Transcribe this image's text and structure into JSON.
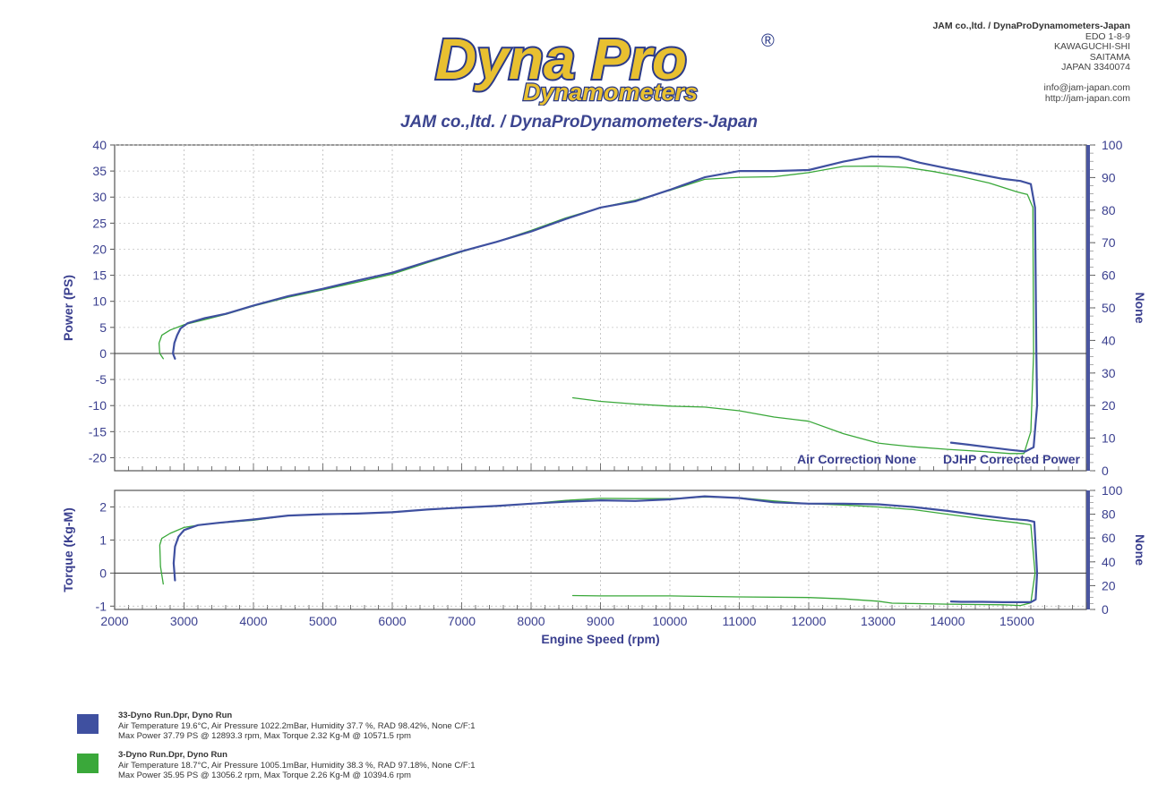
{
  "header": {
    "logo_text": "Dyna Pro",
    "logo_sub": "Dynamometers",
    "logo_mark": "®",
    "company_lines": [
      "JAM co.,ltd. / DynaProDynamometers-Japan",
      "EDO 1-8-9",
      "KAWAGUCHI-SHI",
      "SAITAMA",
      "JAPAN 3340074"
    ],
    "contact_lines": [
      "info@jam-japan.com",
      "http://jam-japan.com"
    ]
  },
  "report_title": "JAM co.,ltd. / DynaProDynamometers-Japan",
  "colors": {
    "run33": "#3f50a0",
    "run3": "#3aa83a",
    "axis_text": "#3a3f8f"
  },
  "chart_data": [
    {
      "type": "line",
      "ylabel": "Power (PS)",
      "y2label": "None",
      "ylim": [
        -22.5,
        40
      ],
      "y_ticks": [
        "40",
        "35",
        "30",
        "25",
        "20",
        "15",
        "10",
        "5",
        "0",
        "-5",
        "-10",
        "-15",
        "-20"
      ],
      "y2lim": [
        0,
        100
      ],
      "y2_ticks": [
        "100",
        "90",
        "80",
        "70",
        "60",
        "50",
        "40",
        "30",
        "20",
        "10",
        "0"
      ],
      "xlim": [
        2000,
        16000
      ],
      "grid": true,
      "annotations": [
        "Air Correction None",
        "DJHP Corrected Power"
      ],
      "series": [
        {
          "name": "33-Dyno Run.Dpr",
          "color": "#3f50a0",
          "x": [
            2870,
            2840,
            2860,
            2900,
            2950,
            3050,
            3300,
            3600,
            4000,
            4500,
            5000,
            5500,
            6000,
            6500,
            7000,
            7500,
            8000,
            8500,
            9000,
            9500,
            10000,
            10500,
            11000,
            11500,
            12000,
            12500,
            12900,
            13300,
            13600,
            14000,
            14400,
            14800,
            15050,
            15200,
            15260,
            15280,
            15290,
            15240,
            15120,
            14900,
            14600,
            14300,
            14050
          ],
          "y": [
            -1,
            0,
            2,
            3.5,
            4.8,
            5.8,
            6.8,
            7.6,
            9.2,
            11,
            12.4,
            14,
            15.5,
            17.6,
            19.6,
            21.4,
            23.4,
            25.8,
            28,
            29.2,
            31.4,
            33.8,
            35,
            35,
            35.2,
            36.8,
            37.8,
            37.7,
            36.6,
            35.5,
            34.5,
            33.5,
            33.1,
            32.5,
            28,
            0,
            -10,
            -18,
            -18.8,
            -18.5,
            -18,
            -17.5,
            -17.1
          ]
        },
        {
          "name": "3-Dyno Run.Dpr",
          "color": "#3aa83a",
          "x": [
            2700,
            2650,
            2640,
            2680,
            2800,
            3000,
            3300,
            3600,
            4000,
            4500,
            5000,
            5500,
            6000,
            6500,
            7000,
            7500,
            8000,
            8500,
            9000,
            9500,
            10000,
            10500,
            11000,
            11500,
            12000,
            12500,
            13000,
            13400,
            13800,
            14200,
            14600,
            15000,
            15150,
            15230,
            15240,
            15200,
            15100,
            14900,
            14500,
            14000,
            13500,
            13200,
            13000,
            12500,
            12000,
            11500,
            11000,
            10500,
            10000,
            9500,
            9000,
            8600
          ],
          "y": [
            -1,
            0,
            2,
            3.5,
            4.5,
            5.5,
            6.5,
            7.5,
            9.1,
            10.8,
            12.2,
            13.7,
            15.2,
            17.4,
            19.5,
            21.4,
            23.6,
            26,
            28,
            29.4,
            31.3,
            33.4,
            33.8,
            33.9,
            34.7,
            35.9,
            35.95,
            35.7,
            34.9,
            33.9,
            32.7,
            31,
            30.5,
            28,
            0,
            -15,
            -19.2,
            -19.2,
            -18.8,
            -18.4,
            -17.9,
            -17.5,
            -17.2,
            -15.4,
            -13,
            -12.2,
            -11,
            -10.3,
            -10.1,
            -9.7,
            -9.2,
            -8.5
          ]
        }
      ]
    },
    {
      "type": "line",
      "ylabel": "Torque (Kg-M)",
      "xlabel": "Engine Speed (rpm)",
      "y2label": "None",
      "ylim": [
        -1.1,
        2.5
      ],
      "y_ticks": [
        "2",
        "1",
        "0",
        "-1"
      ],
      "y2lim": [
        0,
        100
      ],
      "y2_ticks": [
        "100",
        "80",
        "60",
        "40",
        "20",
        "0"
      ],
      "xlim": [
        2000,
        16000
      ],
      "x_ticks": [
        "2000",
        "3000",
        "4000",
        "5000",
        "6000",
        "7000",
        "8000",
        "9000",
        "10000",
        "11000",
        "12000",
        "13000",
        "14000",
        "15000"
      ],
      "grid": true,
      "series": [
        {
          "name": "33-Dyno Run.Dpr",
          "color": "#3f50a0",
          "x": [
            2870,
            2850,
            2870,
            2920,
            3000,
            3200,
            3500,
            4000,
            4500,
            5000,
            5500,
            6000,
            6500,
            7000,
            7500,
            8000,
            8500,
            9000,
            9500,
            10000,
            10500,
            11000,
            11500,
            12000,
            12500,
            13000,
            13500,
            14000,
            14500,
            14900,
            15150,
            15250,
            15290,
            15270,
            15200,
            15050,
            14800,
            14500,
            14200,
            14050
          ],
          "y": [
            -0.22,
            0.3,
            0.8,
            1.1,
            1.3,
            1.45,
            1.52,
            1.62,
            1.74,
            1.78,
            1.8,
            1.84,
            1.92,
            1.98,
            2.03,
            2.1,
            2.16,
            2.2,
            2.18,
            2.23,
            2.32,
            2.27,
            2.14,
            2.1,
            2.1,
            2.08,
            2.0,
            1.88,
            1.74,
            1.64,
            1.6,
            1.55,
            0,
            -0.8,
            -0.88,
            -0.88,
            -0.88,
            -0.87,
            -0.87,
            -0.86
          ]
        },
        {
          "name": "3-Dyno Run.Dpr",
          "color": "#3aa83a",
          "x": [
            2700,
            2660,
            2650,
            2680,
            2800,
            3000,
            3300,
            3600,
            4000,
            4500,
            5000,
            5500,
            6000,
            6500,
            7000,
            7500,
            8000,
            8500,
            9000,
            9500,
            10000,
            10500,
            11000,
            11500,
            12000,
            12500,
            13000,
            13500,
            14000,
            14500,
            15000,
            15200,
            15260,
            15200,
            15050,
            14800,
            14400,
            14000,
            13500,
            13200,
            13000,
            12500,
            12000,
            11000,
            10000,
            9000,
            8600
          ],
          "y": [
            -0.33,
            0.2,
            0.85,
            1.05,
            1.2,
            1.38,
            1.48,
            1.53,
            1.6,
            1.74,
            1.78,
            1.8,
            1.85,
            1.92,
            1.97,
            2.02,
            2.1,
            2.2,
            2.26,
            2.25,
            2.25,
            2.3,
            2.28,
            2.18,
            2.1,
            2.06,
            2.0,
            1.92,
            1.78,
            1.64,
            1.52,
            1.46,
            0,
            -0.9,
            -0.98,
            -0.96,
            -0.95,
            -0.94,
            -0.92,
            -0.91,
            -0.85,
            -0.78,
            -0.74,
            -0.72,
            -0.69,
            -0.69,
            -0.68
          ]
        }
      ]
    }
  ],
  "legend": [
    {
      "title": "33-Dyno Run.Dpr,   Dyno Run",
      "line1": "Air Temperature 19.6°C, Air Pressure 1022.2mBar, Humidity 37.7 %, RAD 98.42%,   None  C/F:1",
      "line2": "Max Power 37.79 PS @ 12893.3 rpm, Max Torque 2.32 Kg-M @ 10571.5 rpm"
    },
    {
      "title": "3-Dyno Run.Dpr,   Dyno Run",
      "line1": "Air Temperature 18.7°C, Air Pressure 1005.1mBar, Humidity 38.3 %, RAD 97.18%,   None  C/F:1",
      "line2": "Max Power 35.95 PS @ 13056.2 rpm, Max Torque 2.26 Kg-M @ 10394.6 rpm"
    }
  ]
}
